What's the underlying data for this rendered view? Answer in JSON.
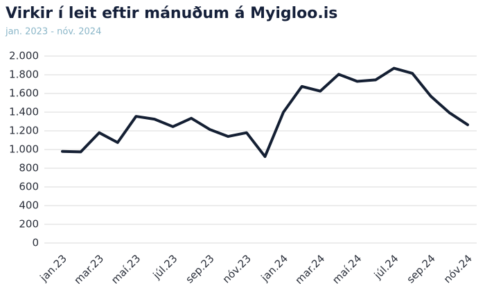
{
  "chart_data": {
    "type": "line",
    "title": "Virkir í leit eftir mánuðum á Myigloo.is",
    "subtitle": "jan. 2023 - nóv. 2024",
    "categories": [
      "jan.23",
      null,
      "mar.23",
      null,
      "maí.23",
      null,
      "júl.23",
      null,
      "sep.23",
      null,
      "nóv.23",
      null,
      "jan.24",
      null,
      "mar.24",
      null,
      "maí.24",
      null,
      "júl.24",
      null,
      "sep.24",
      null,
      "nóv.24"
    ],
    "series": [
      {
        "color": "#141f33",
        "values": [
          980,
          975,
          1180,
          1075,
          1355,
          1325,
          1245,
          1335,
          1215,
          1140,
          1180,
          925,
          1400,
          1675,
          1625,
          1805,
          1730,
          1745,
          1870,
          1815,
          1570,
          1395,
          1265
        ]
      }
    ],
    "ylim": [
      0,
      2000
    ],
    "yticks": [
      0,
      200,
      400,
      600,
      800,
      {
        "value": 1000,
        "label": "1.000"
      },
      {
        "value": 1200,
        "label": "1.200"
      },
      {
        "value": 1400,
        "label": "1.400"
      },
      {
        "value": 1600,
        "label": "1.600"
      },
      {
        "value": 1800,
        "label": "1.800"
      },
      {
        "value": 2000,
        "label": "2.000"
      }
    ],
    "grid": true
  }
}
